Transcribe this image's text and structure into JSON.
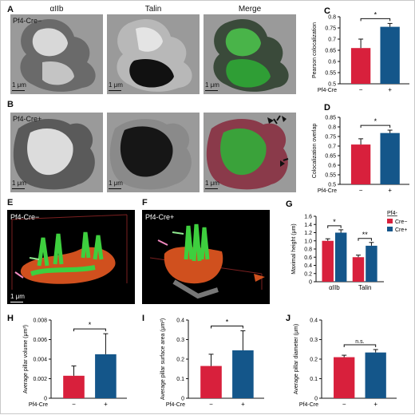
{
  "panels": {
    "A": {
      "letter": "A",
      "row_label": "Pf4-Cre−",
      "col_titles": [
        "αIIb",
        "Talin",
        "Merge"
      ],
      "scale": "1 μm"
    },
    "B": {
      "letter": "B",
      "row_label": "Pf4-Cre+",
      "scale": "1 μm"
    },
    "E": {
      "letter": "E",
      "label": "Pf4-Cre−",
      "scale": "1 μm"
    },
    "F": {
      "letter": "F",
      "label": "Pf4-Cre+"
    }
  },
  "colors": {
    "cre_minus": "#d8203c",
    "cre_plus": "#14568a"
  },
  "chart_data": [
    {
      "id": "C",
      "letter": "C",
      "type": "bar",
      "categories": [
        "−",
        "+"
      ],
      "values": [
        0.66,
        0.755
      ],
      "errors": [
        0.04,
        0.015
      ],
      "ylabel": "Pearson colocalization",
      "xlabel": "Pf4-Cre",
      "ylim": [
        0.5,
        0.8
      ],
      "yticks": [
        "0.5",
        "0.55",
        "0.6",
        "0.65",
        "0.7",
        "0.75",
        "0.8"
      ],
      "yticks_num": [
        0.5,
        0.55,
        0.6,
        0.65,
        0.7,
        0.75,
        0.8
      ],
      "sig": "*"
    },
    {
      "id": "D",
      "letter": "D",
      "type": "bar",
      "categories": [
        "−",
        "+"
      ],
      "values": [
        0.708,
        0.768
      ],
      "errors": [
        0.03,
        0.015
      ],
      "ylabel": "Colocalization overlap",
      "xlabel": "Pf4-Cre",
      "ylim": [
        0.5,
        0.85
      ],
      "yticks": [
        "0.5",
        "0.55",
        "0.6",
        "0.65",
        "0.7",
        "0.75",
        "0.8",
        "0.85"
      ],
      "yticks_num": [
        0.5,
        0.55,
        0.6,
        0.65,
        0.7,
        0.75,
        0.8,
        0.85
      ],
      "sig": "*"
    },
    {
      "id": "G",
      "letter": "G",
      "type": "bar",
      "categories": [
        "αIIb",
        "Talin"
      ],
      "series": [
        {
          "name": "Cre−",
          "values": [
            1.0,
            0.6
          ],
          "errors": [
            0.05,
            0.05
          ]
        },
        {
          "name": "Cre+",
          "values": [
            1.2,
            0.88
          ],
          "errors": [
            0.07,
            0.08
          ]
        }
      ],
      "legend_title": "Pf4-",
      "ylabel": "Maximal height (μm)",
      "ylim": [
        0,
        1.6
      ],
      "yticks": [
        "0",
        "0.2",
        "0.4",
        "0.6",
        "0.8",
        "1.0",
        "1.2",
        "1.4",
        "1.6"
      ],
      "yticks_num": [
        0,
        0.2,
        0.4,
        0.6,
        0.8,
        1.0,
        1.2,
        1.4,
        1.6
      ],
      "sig": [
        "*",
        "**"
      ]
    },
    {
      "id": "H",
      "letter": "H",
      "type": "bar",
      "categories": [
        "−",
        "+"
      ],
      "values": [
        0.0023,
        0.0045
      ],
      "errors": [
        0.001,
        0.0021
      ],
      "ylabel": "Average pillar volume (μm³)",
      "xlabel": "Pf4-Cre",
      "ylim": [
        0,
        0.008
      ],
      "yticks": [
        "0",
        "0.002",
        "0.004",
        "0.006",
        "0.008"
      ],
      "yticks_num": [
        0,
        0.002,
        0.004,
        0.006,
        0.008
      ],
      "sig": "*"
    },
    {
      "id": "I",
      "letter": "I",
      "type": "bar",
      "categories": [
        "−",
        "+"
      ],
      "values": [
        0.165,
        0.245
      ],
      "errors": [
        0.06,
        0.1
      ],
      "ylabel": "Average pillar surface area (μm²)",
      "xlabel": "Pf4-Cre",
      "ylim": [
        0,
        0.4
      ],
      "yticks": [
        "0",
        "0.1",
        "0.2",
        "0.3",
        "0.4"
      ],
      "yticks_num": [
        0,
        0.1,
        0.2,
        0.3,
        0.4
      ],
      "sig": "*"
    },
    {
      "id": "J",
      "letter": "J",
      "type": "bar",
      "categories": [
        "−",
        "+"
      ],
      "values": [
        0.21,
        0.234
      ],
      "errors": [
        0.01,
        0.015
      ],
      "ylabel": "Average pillar diameter (μm)",
      "xlabel": "Pf4-Cre",
      "ylim": [
        0,
        0.4
      ],
      "yticks": [
        "0",
        "0.1",
        "0.2",
        "0.3",
        "0.4"
      ],
      "yticks_num": [
        0,
        0.1,
        0.2,
        0.3,
        0.4
      ],
      "sig": "n.s."
    }
  ]
}
